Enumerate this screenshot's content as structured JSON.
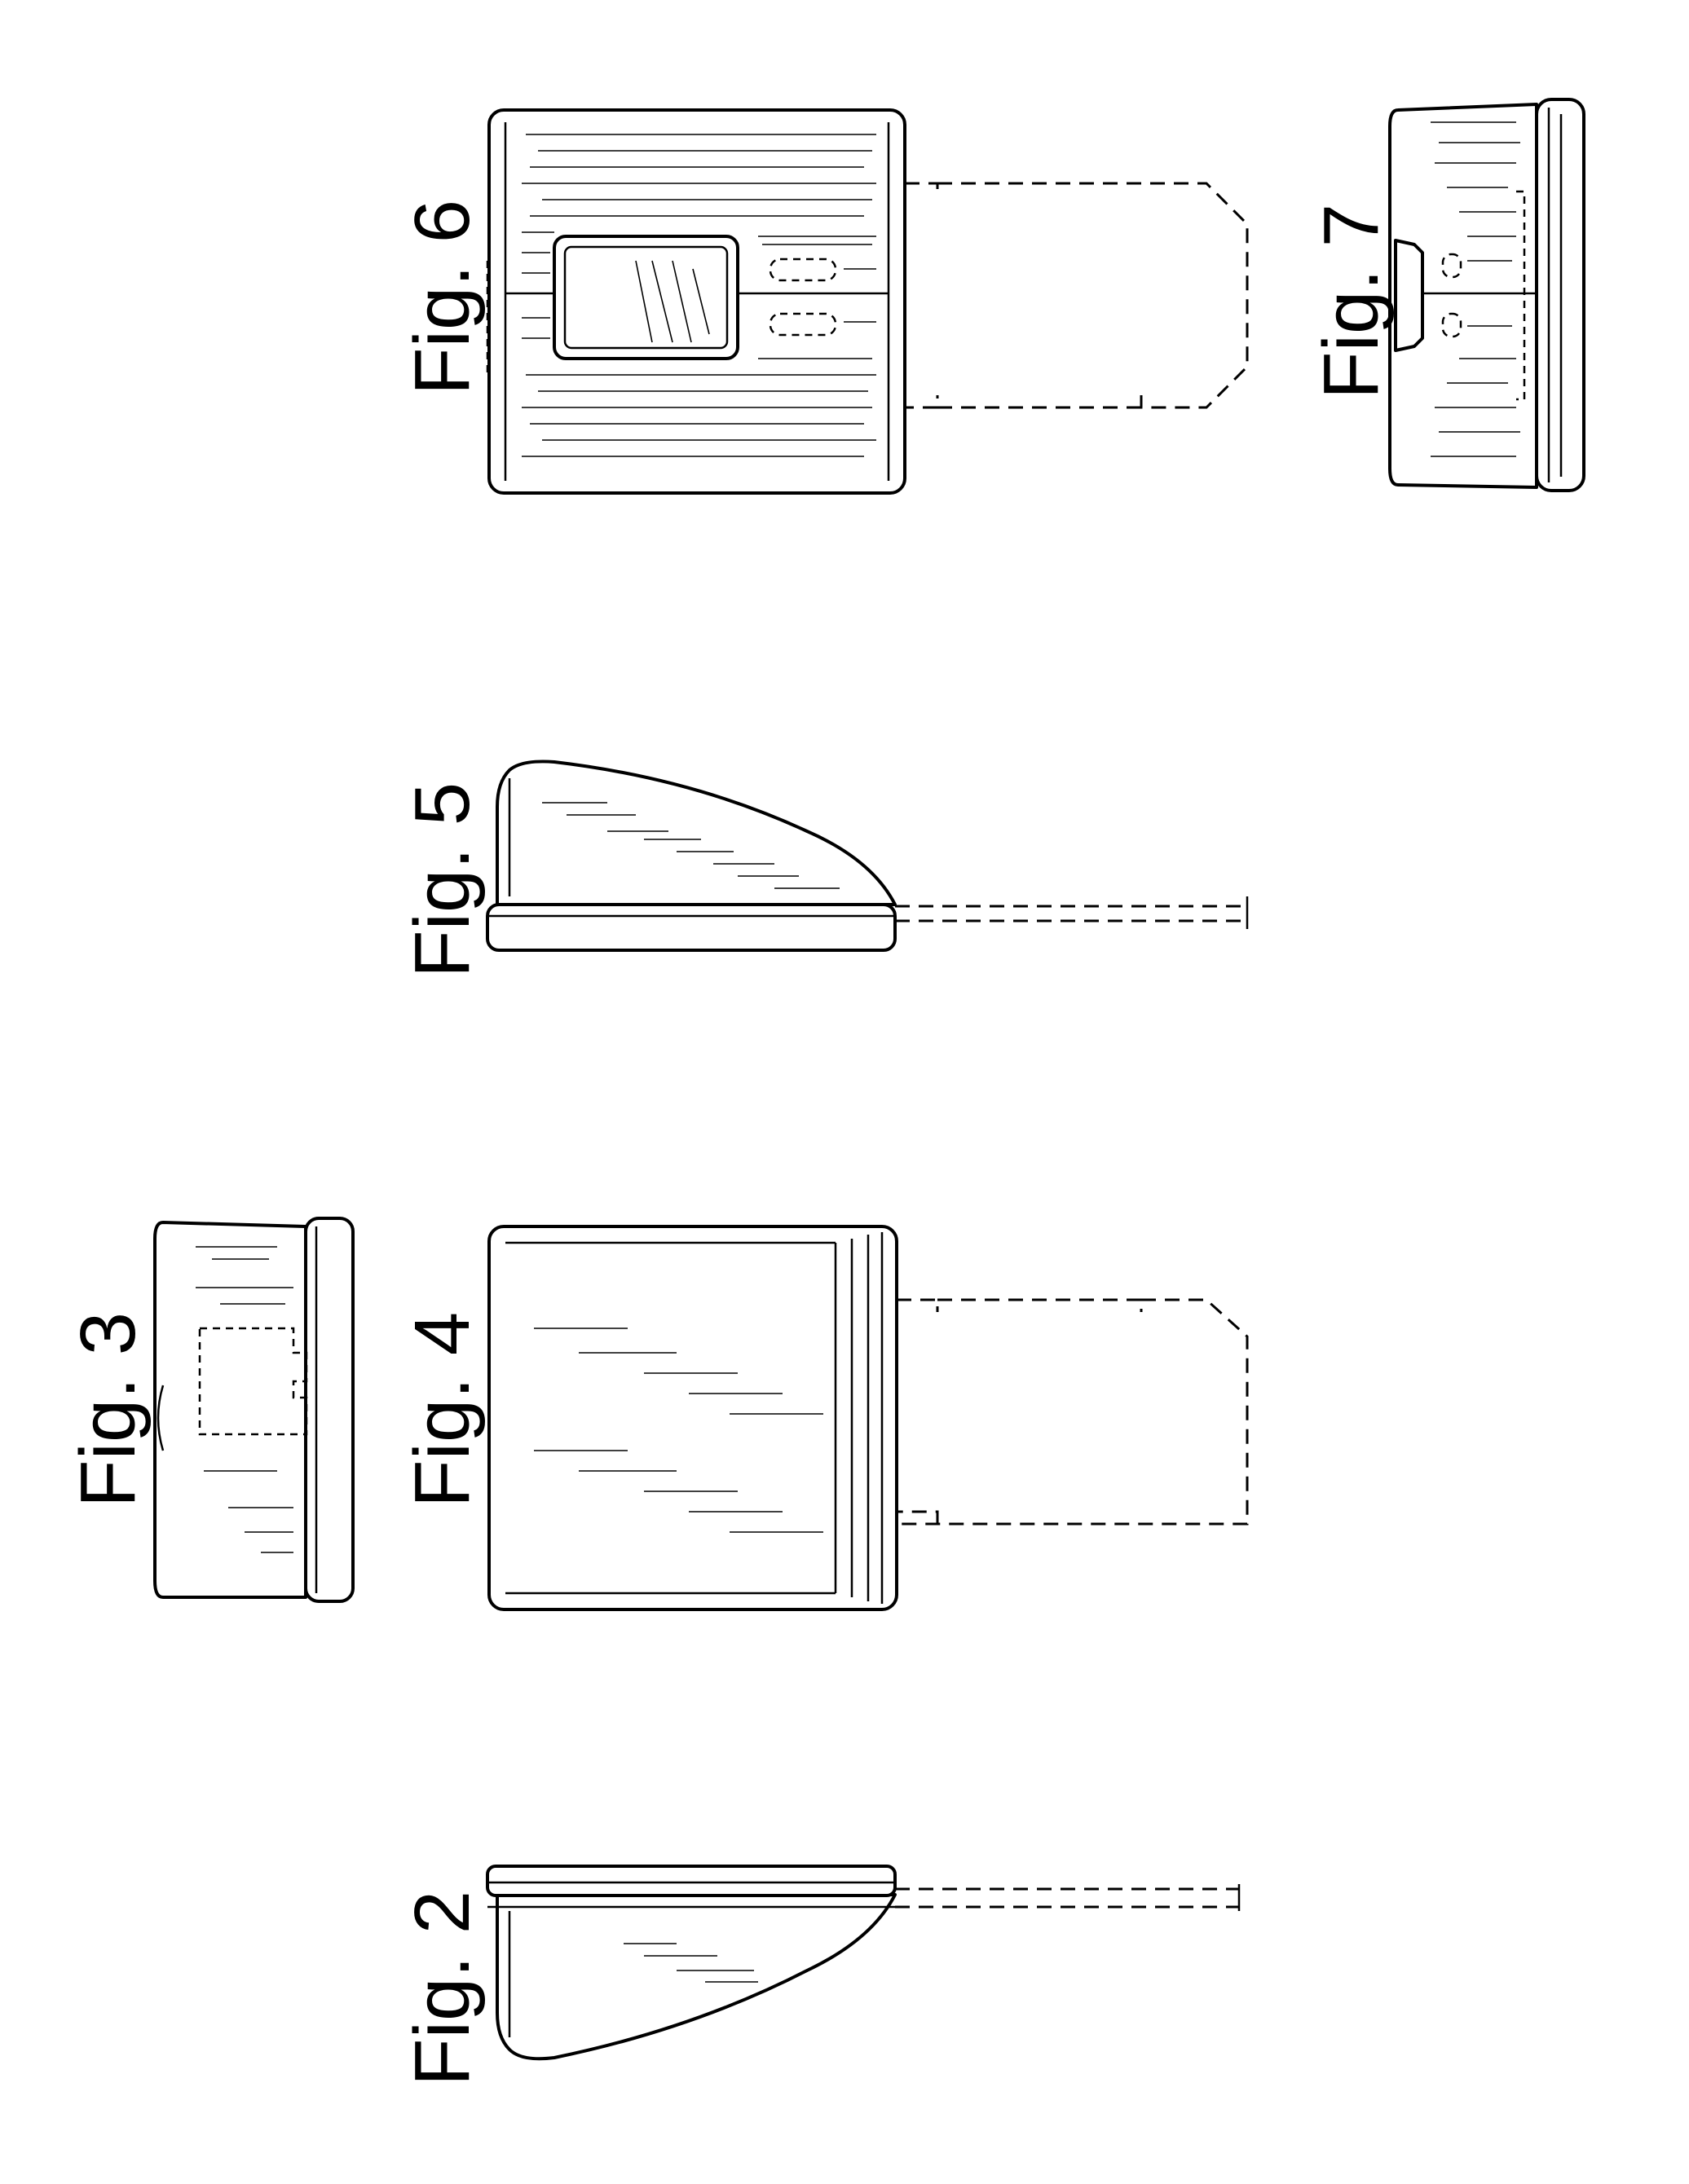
{
  "figures": [
    {
      "id": "fig2",
      "label": "Fig. 2"
    },
    {
      "id": "fig3",
      "label": "Fig. 3"
    },
    {
      "id": "fig4",
      "label": "Fig. 4"
    },
    {
      "id": "fig5",
      "label": "Fig. 5"
    },
    {
      "id": "fig6",
      "label": "Fig. 6"
    },
    {
      "id": "fig7",
      "label": "Fig. 7"
    }
  ]
}
